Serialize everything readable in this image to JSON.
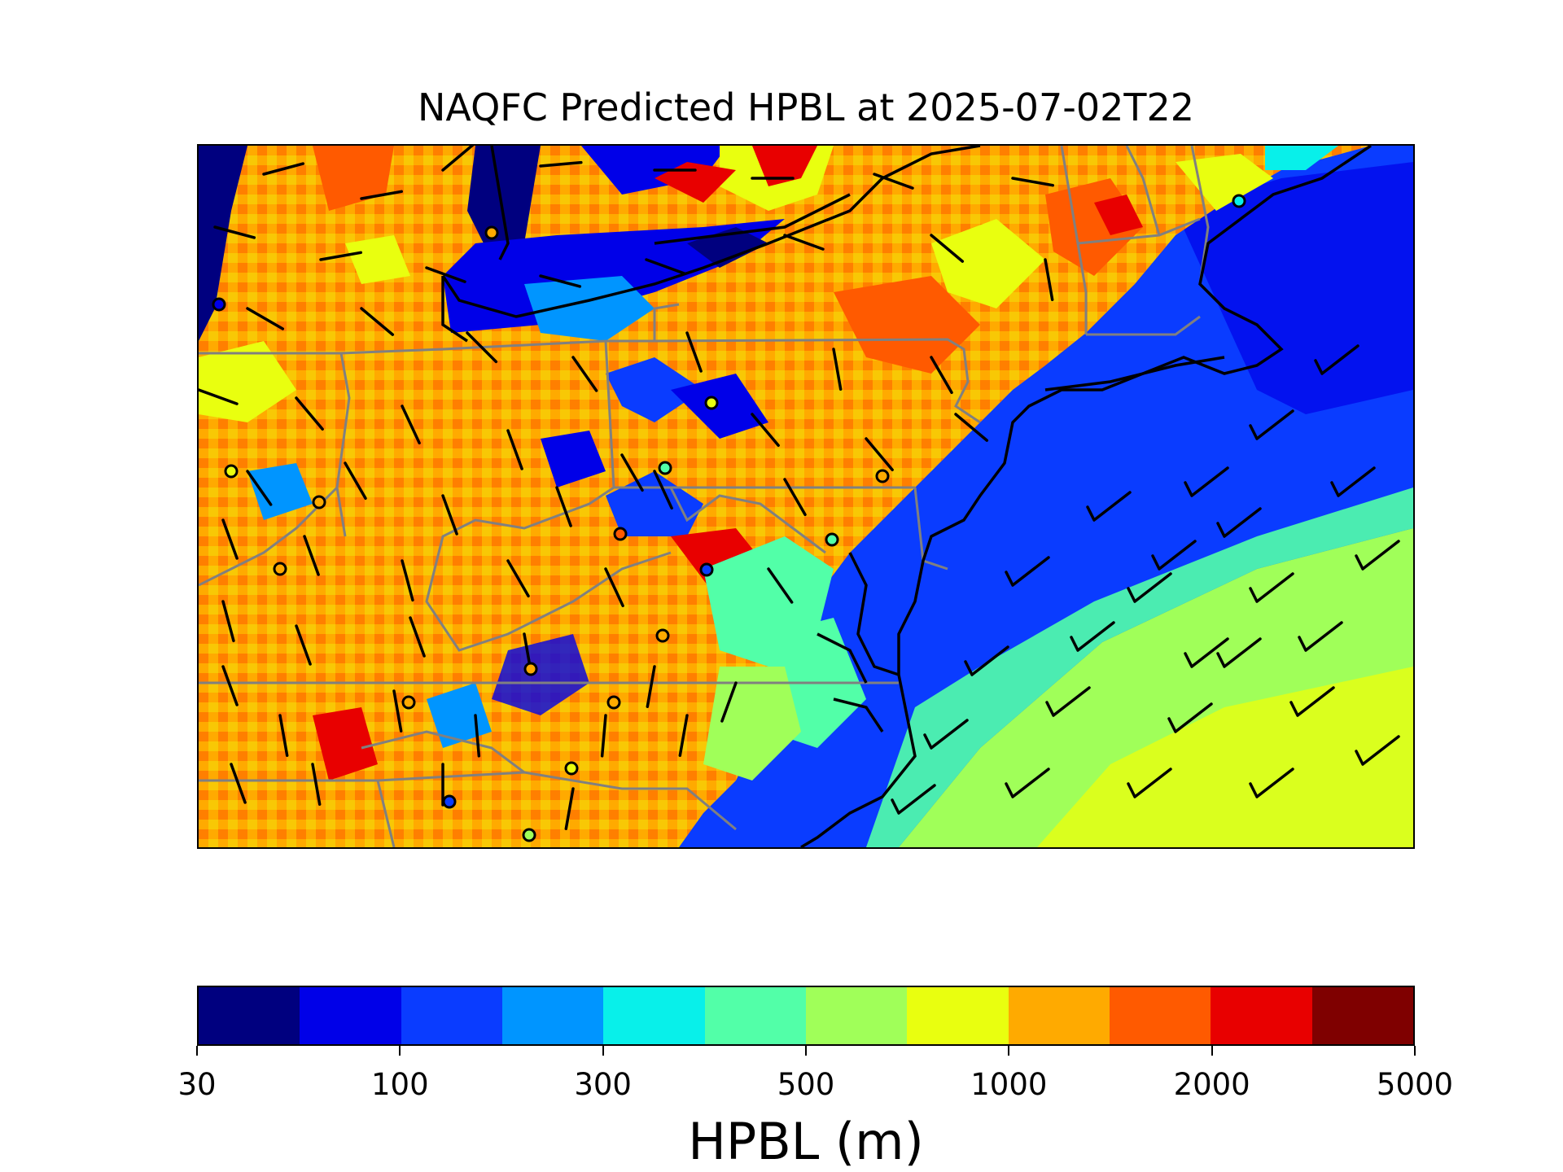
{
  "title": "NAQFC Predicted HPBL at 2025-07-02T22",
  "colorbar": {
    "label": "HPBL (m)",
    "levels": [
      30,
      50,
      100,
      200,
      300,
      400,
      500,
      700,
      1000,
      1500,
      2000,
      3000,
      5000
    ],
    "colors": [
      "#00007f",
      "#0000e8",
      "#0a3cff",
      "#0095ff",
      "#08f0ea",
      "#52ffa8",
      "#a0ff59",
      "#e9ff0f",
      "#ffaa00",
      "#ff5a00",
      "#e80000",
      "#7f0000"
    ],
    "tick_labels": [
      {
        "text": "30",
        "level_index": 0
      },
      {
        "text": "100",
        "level_index": 2
      },
      {
        "text": "300",
        "level_index": 4
      },
      {
        "text": "500",
        "level_index": 6
      },
      {
        "text": "1000",
        "level_index": 8
      },
      {
        "text": "2000",
        "level_index": 10
      },
      {
        "text": "5000",
        "level_index": 12
      }
    ]
  },
  "map": {
    "field": "HPBL",
    "units": "m",
    "lon_range": [
      -85,
      -67
    ],
    "lat_range": [
      35,
      45.5
    ],
    "ocean_hpbl_near_coast": 100,
    "ocean_hpbl_offshore": 600,
    "land_hpbl_typical": 1200,
    "overlays": [
      "state boundaries",
      "coastlines",
      "wind barbs",
      "observation site markers"
    ]
  }
}
